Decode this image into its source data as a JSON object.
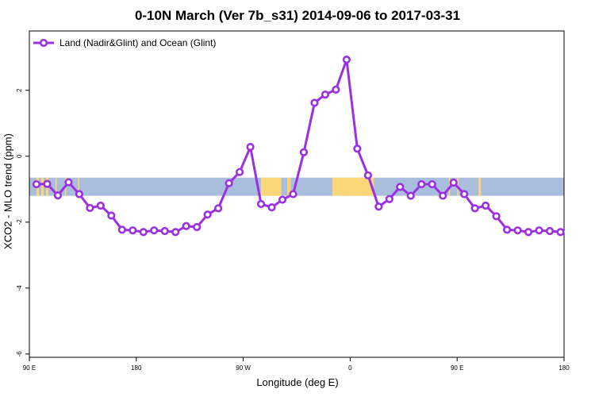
{
  "chart_data": {
    "type": "line",
    "title": "0-10N March (Ver 7b_s31)   2014-09-06 to 2017-03-31",
    "xlabel": "Longitude (deg E)",
    "ylabel": "XCO2 - MLO trend (ppm)",
    "x_axis": {
      "ticks": [
        {
          "pos": 90,
          "label": "90 E"
        },
        {
          "pos": 180,
          "label": "180"
        },
        {
          "pos": 270,
          "label": "90 W"
        },
        {
          "pos": 360,
          "label": "0"
        },
        {
          "pos": 450,
          "label": "90 E"
        },
        {
          "pos": 540,
          "label": "180"
        }
      ],
      "range": [
        90,
        540
      ]
    },
    "y_axis": {
      "ticks": [
        -6,
        -4,
        -2,
        0,
        2
      ],
      "range": [
        -6.1,
        3.8
      ]
    },
    "legend": {
      "position": "top-left",
      "entries": [
        "Land (Nadir&Glint) and Ocean (Glint)"
      ]
    },
    "series": [
      {
        "name": "Land (Nadir&Glint) and Ocean (Glint)",
        "color": "#9b30e0",
        "x": [
          96,
          105,
          114,
          123,
          132,
          141,
          150,
          159,
          168,
          177,
          186,
          195,
          204,
          213,
          222,
          231,
          240,
          249,
          258,
          267,
          276,
          285,
          294,
          303,
          312,
          321,
          330,
          339,
          348,
          357,
          366,
          375,
          384,
          393,
          402,
          411,
          420,
          429,
          438,
          447,
          456,
          465,
          474,
          483,
          492,
          501,
          510,
          519,
          528,
          537
        ],
        "y": [
          -0.85,
          -0.84,
          -1.19,
          -0.79,
          -1.15,
          -1.57,
          -1.5,
          -1.8,
          -2.23,
          -2.25,
          -2.3,
          -2.25,
          -2.27,
          -2.3,
          -2.12,
          -2.15,
          -1.77,
          -1.58,
          -0.82,
          -0.48,
          0.28,
          -1.45,
          -1.55,
          -1.32,
          -1.15,
          0.12,
          1.62,
          1.87,
          2.02,
          2.93,
          0.23,
          -0.58,
          -1.53,
          -1.3,
          -0.93,
          -1.2,
          -0.85,
          -0.85,
          -1.2,
          -0.8,
          -1.15,
          -1.58,
          -1.5,
          -1.82,
          -2.23,
          -2.25,
          -2.3,
          -2.25,
          -2.27,
          -2.3
        ]
      }
    ],
    "background_band": {
      "y_range": [
        -1.2,
        -0.65
      ],
      "ocean_color": "#a8bedc",
      "land_color": "#fcd777",
      "land_segments": [
        [
          96,
          98
        ],
        [
          100,
          102
        ],
        [
          104,
          106
        ],
        [
          112,
          113
        ],
        [
          120,
          121
        ],
        [
          131,
          132
        ],
        [
          285,
          302
        ],
        [
          307,
          310
        ],
        [
          345,
          380
        ],
        [
          443,
          444
        ],
        [
          450,
          451
        ],
        [
          468,
          470
        ]
      ]
    },
    "grid": false
  }
}
